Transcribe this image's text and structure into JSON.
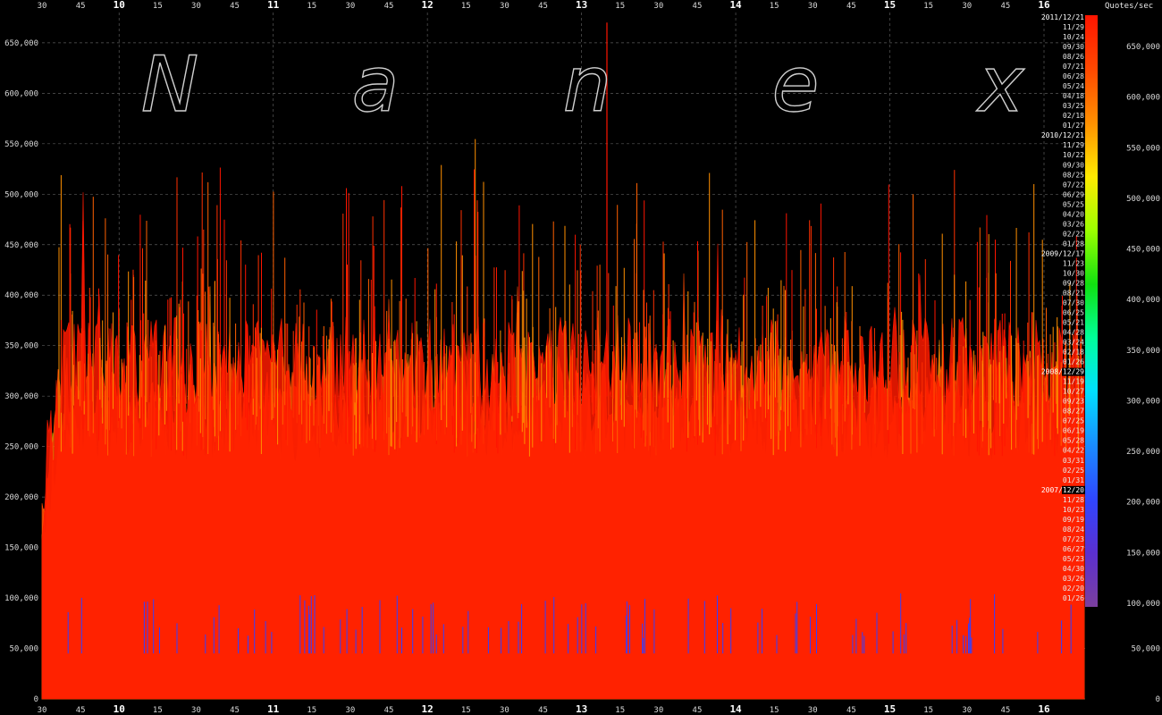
{
  "watermark": {
    "letters": [
      "N",
      "a",
      "n",
      "e",
      "x"
    ]
  },
  "colorbar": {
    "unit_label": "Quotes/sec",
    "colors": [
      "#7b3f9e",
      "#5b2fd0",
      "#2f46ff",
      "#1a8cff",
      "#00e0ff",
      "#00ff9a",
      "#10e010",
      "#9cff00",
      "#ffea00",
      "#ff9000",
      "#ff4800",
      "#ff1500"
    ],
    "tick_labels": [
      "100,000",
      "150,000",
      "200,000",
      "250,000",
      "300,000",
      "350,000",
      "400,000",
      "450,000",
      "500,000",
      "550,000",
      "600,000",
      "650,000"
    ]
  },
  "chart_data": {
    "type": "line",
    "ylabel": "Quotes/sec",
    "ylim": [
      0,
      680000
    ],
    "yticks": [
      0,
      50000,
      100000,
      150000,
      200000,
      250000,
      300000,
      350000,
      400000,
      450000,
      500000,
      550000,
      600000,
      650000
    ],
    "ytick_labels": [
      "0",
      "50,000",
      "100,000",
      "150,000",
      "200,000",
      "250,000",
      "300,000",
      "350,000",
      "400,000",
      "450,000",
      "500,000",
      "550,000",
      "600,000",
      "650,000"
    ],
    "xticks": [
      {
        "label": "30",
        "major": false
      },
      {
        "label": "45",
        "major": false
      },
      {
        "label": "10",
        "major": true
      },
      {
        "label": "15",
        "major": false
      },
      {
        "label": "30",
        "major": false
      },
      {
        "label": "45",
        "major": false
      },
      {
        "label": "11",
        "major": true
      },
      {
        "label": "15",
        "major": false
      },
      {
        "label": "30",
        "major": false
      },
      {
        "label": "45",
        "major": false
      },
      {
        "label": "12",
        "major": true
      },
      {
        "label": "15",
        "major": false
      },
      {
        "label": "30",
        "major": false
      },
      {
        "label": "45",
        "major": false
      },
      {
        "label": "13",
        "major": true
      },
      {
        "label": "15",
        "major": false
      },
      {
        "label": "30",
        "major": false
      },
      {
        "label": "45",
        "major": false
      },
      {
        "label": "14",
        "major": true
      },
      {
        "label": "15",
        "major": false
      },
      {
        "label": "30",
        "major": false
      },
      {
        "label": "45",
        "major": false
      },
      {
        "label": "15",
        "major": true
      },
      {
        "label": "15",
        "major": false
      },
      {
        "label": "30",
        "major": false
      },
      {
        "label": "45",
        "major": false
      },
      {
        "label": "16",
        "major": true
      }
    ],
    "x_range_minutes": [
      570,
      960
    ],
    "legend": {
      "placement": "right",
      "entries": [
        {
          "label": "2011/12/21",
          "year": true
        },
        {
          "label": "11/29"
        },
        {
          "label": "10/24"
        },
        {
          "label": "09/30"
        },
        {
          "label": "08/26"
        },
        {
          "label": "07/21"
        },
        {
          "label": "06/28"
        },
        {
          "label": "05/24"
        },
        {
          "label": "04/18"
        },
        {
          "label": "03/25"
        },
        {
          "label": "02/18"
        },
        {
          "label": "01/27"
        },
        {
          "label": "2010/12/21",
          "year": true
        },
        {
          "label": "11/29"
        },
        {
          "label": "10/22"
        },
        {
          "label": "09/30"
        },
        {
          "label": "08/25"
        },
        {
          "label": "07/22"
        },
        {
          "label": "06/29"
        },
        {
          "label": "05/25"
        },
        {
          "label": "04/20"
        },
        {
          "label": "03/26"
        },
        {
          "label": "02/22"
        },
        {
          "label": "01/28"
        },
        {
          "label": "2009/12/17",
          "year": true
        },
        {
          "label": "11/23"
        },
        {
          "label": "10/30"
        },
        {
          "label": "09/28"
        },
        {
          "label": "08/21"
        },
        {
          "label": "07/30"
        },
        {
          "label": "06/25"
        },
        {
          "label": "05/21"
        },
        {
          "label": "04/28"
        },
        {
          "label": "03/24"
        },
        {
          "label": "02/18"
        },
        {
          "label": "01/26"
        },
        {
          "label": "2008/12/29",
          "year": true
        },
        {
          "label": "11/19"
        },
        {
          "label": "10/27"
        },
        {
          "label": "09/23"
        },
        {
          "label": "08/27"
        },
        {
          "label": "07/25"
        },
        {
          "label": "06/19"
        },
        {
          "label": "05/28"
        },
        {
          "label": "04/22"
        },
        {
          "label": "03/31"
        },
        {
          "label": "02/25"
        },
        {
          "label": "01/31"
        },
        {
          "label": "2007/12/20",
          "year": true
        },
        {
          "label": "11/28"
        },
        {
          "label": "10/23"
        },
        {
          "label": "09/19"
        },
        {
          "label": "08/24"
        },
        {
          "label": "07/23"
        },
        {
          "label": "06/27"
        },
        {
          "label": "05/23"
        },
        {
          "label": "04/30"
        },
        {
          "label": "03/26"
        },
        {
          "label": "02/20"
        },
        {
          "label": "01/26"
        }
      ]
    },
    "series_bands": [
      {
        "color": "#ff1a00",
        "base": 330000,
        "spread": 70000
      },
      {
        "color": "#ff4a00",
        "base": 300000,
        "spread": 60000
      },
      {
        "color": "#ff8800",
        "base": 270000,
        "spread": 55000
      },
      {
        "color": "#ffd000",
        "base": 240000,
        "spread": 50000
      },
      {
        "color": "#aaff00",
        "base": 205000,
        "spread": 45000
      },
      {
        "color": "#22e81a",
        "base": 170000,
        "spread": 40000
      },
      {
        "color": "#00f090",
        "base": 135000,
        "spread": 30000
      },
      {
        "color": "#00e8ff",
        "base": 100000,
        "spread": 22000
      },
      {
        "color": "#1a8cff",
        "base": 72000,
        "spread": 15000
      },
      {
        "color": "#2f40ff",
        "base": 52000,
        "spread": 10000
      },
      {
        "color": "#5b2fd0",
        "base": 38000,
        "spread": 6000
      },
      {
        "color": "#7b3f9e",
        "base": 22000,
        "spread": 4000
      }
    ],
    "peak_value": 670000
  }
}
